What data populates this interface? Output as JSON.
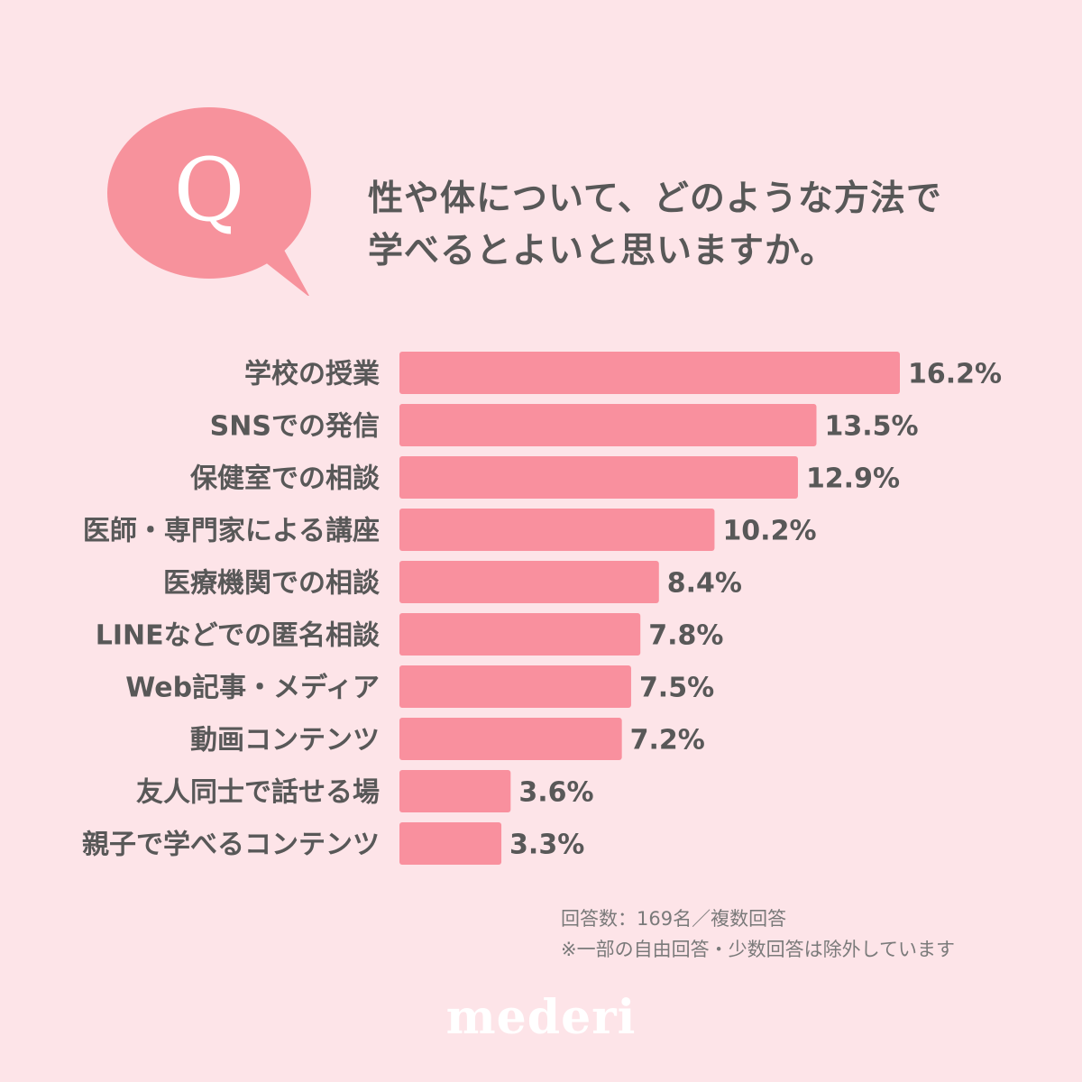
{
  "question": {
    "badge": "Q",
    "line1": "性や体について、どのような方法で",
    "line2": "学べるとよいと思いますか。"
  },
  "chart_data": {
    "type": "bar",
    "orientation": "horizontal",
    "categories": [
      "学校の授業",
      "SNSでの発信",
      "保健室での相談",
      "医師・専門家による講座",
      "医療機関での相談",
      "LINEなどでの匿名相談",
      "Web記事・メディア",
      "動画コンテンツ",
      "友人同士で話せる場",
      "親子で学べるコンテンツ"
    ],
    "values": [
      16.2,
      13.5,
      12.9,
      10.2,
      8.4,
      7.8,
      7.5,
      7.2,
      3.6,
      3.3
    ],
    "value_labels": [
      "16.2%",
      "13.5%",
      "12.9%",
      "10.2%",
      "8.4%",
      "7.8%",
      "7.5%",
      "7.2%",
      "3.6%",
      "3.3%"
    ],
    "unit": "%",
    "xlim": [
      0,
      16.2
    ],
    "grid": false,
    "legend": "none"
  },
  "footnotes": {
    "respondents": "回答数：169名／複数回答",
    "note": "※一部の自由回答・少数回答は除外しています"
  },
  "logo": "mederi",
  "colors": {
    "background": "#fde4e8",
    "bar": "#f9909e",
    "bubble": "#f7929c",
    "text": "#585858",
    "note_text": "#7a7a7a",
    "logo": "#ffffff"
  }
}
